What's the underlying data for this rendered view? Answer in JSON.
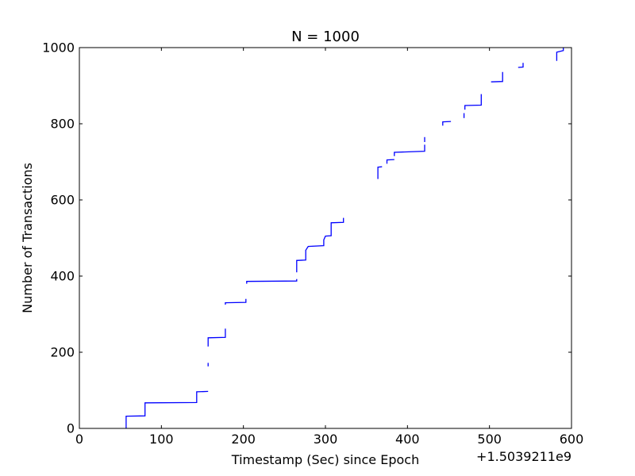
{
  "chart_data": {
    "type": "line",
    "title": "N = 1000",
    "xlabel": "Timestamp (Sec) since Epoch",
    "ylabel": "Number of Transactions",
    "x_offset_label": "+1.5039211e9",
    "xlim": [
      0,
      600
    ],
    "ylim": [
      0,
      1000
    ],
    "x_ticks": [
      0,
      100,
      200,
      300,
      400,
      500,
      600
    ],
    "x_tick_labels": [
      "0",
      "100",
      "200",
      "300",
      "400",
      "500",
      "600"
    ],
    "y_ticks": [
      0,
      200,
      400,
      600,
      800,
      1000
    ],
    "y_tick_labels": [
      "0",
      "200",
      "400",
      "600",
      "800",
      "1000"
    ],
    "grid": false,
    "line_color": "#0000ff",
    "series": [
      {
        "segments": [
          [
            [
              57,
              0
            ],
            [
              57,
              32
            ],
            [
              80,
              33
            ],
            [
              80,
              67
            ],
            [
              143,
              68
            ],
            [
              143,
              96
            ],
            [
              157,
              97
            ]
          ],
          [
            [
              157,
              163
            ],
            [
              157,
              172
            ]
          ],
          [
            [
              157,
              215
            ],
            [
              157,
              238
            ],
            [
              178,
              239
            ],
            [
              178,
              262
            ]
          ],
          [
            [
              178,
              325
            ],
            [
              178,
              330
            ],
            [
              203,
              331
            ],
            [
              203,
              340
            ]
          ],
          [
            [
              204,
              380
            ],
            [
              204,
              386
            ],
            [
              265,
              387
            ],
            [
              265,
              392
            ]
          ],
          [
            [
              265,
              410
            ],
            [
              265,
              441
            ],
            [
              276,
              442
            ],
            [
              276,
              468
            ],
            [
              279,
              478
            ],
            [
              298,
              480
            ],
            [
              298,
              495
            ],
            [
              300,
              505
            ],
            [
              307,
              506
            ],
            [
              307,
              540
            ],
            [
              322,
              541
            ],
            [
              322,
              553
            ]
          ],
          [
            [
              364,
              655
            ],
            [
              364,
              686
            ],
            [
              369,
              687
            ]
          ],
          [
            [
              375,
              695
            ],
            [
              375,
              705
            ],
            [
              384,
              706
            ]
          ],
          [
            [
              384,
              715
            ],
            [
              384,
              725
            ],
            [
              421,
              728
            ],
            [
              421,
              745
            ]
          ],
          [
            [
              421,
              752
            ],
            [
              421,
              765
            ]
          ],
          [
            [
              443,
              795
            ],
            [
              443,
              805
            ],
            [
              453,
              806
            ]
          ],
          [
            [
              469,
              815
            ],
            [
              469,
              828
            ]
          ],
          [
            [
              470,
              837
            ],
            [
              470,
              848
            ],
            [
              490,
              849
            ],
            [
              490,
              878
            ]
          ],
          [
            [
              502,
              910
            ],
            [
              516,
              911
            ],
            [
              516,
              936
            ]
          ],
          [
            [
              535,
              948
            ],
            [
              541,
              949
            ],
            [
              541,
              960
            ]
          ],
          [
            [
              582,
              965
            ],
            [
              582,
              988
            ],
            [
              590,
              992
            ],
            [
              590,
              1000
            ]
          ]
        ]
      }
    ]
  }
}
